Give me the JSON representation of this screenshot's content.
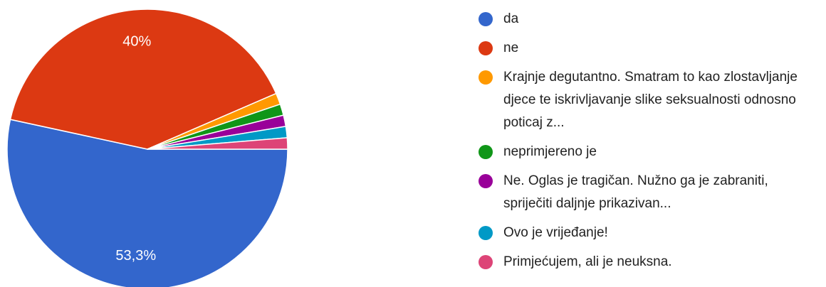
{
  "chart_data": {
    "type": "pie",
    "categories": [
      "da",
      "ne",
      "Krajnje degutantno. Smatram to kao zlostavljanje djece te iskrivljavanje slike seksualnosti odnosno poticaj z...",
      "neprimjereno je",
      "Ne. Oglas je tragičan. Nužno ga je zabraniti, spriječiti daljnje prikazivan...",
      "Ovo je vrijeđanje!",
      "Primjećujem, ali je neuksna."
    ],
    "values": [
      53.3,
      40,
      1.3,
      1.3,
      1.3,
      1.3,
      1.3
    ],
    "value_labels": [
      "53,3%",
      "40%",
      null,
      null,
      null,
      null,
      null
    ],
    "colors": [
      "#3366cc",
      "#dc3912",
      "#ff9900",
      "#109618",
      "#990099",
      "#0099c6",
      "#dd4477"
    ],
    "legend": "right"
  }
}
